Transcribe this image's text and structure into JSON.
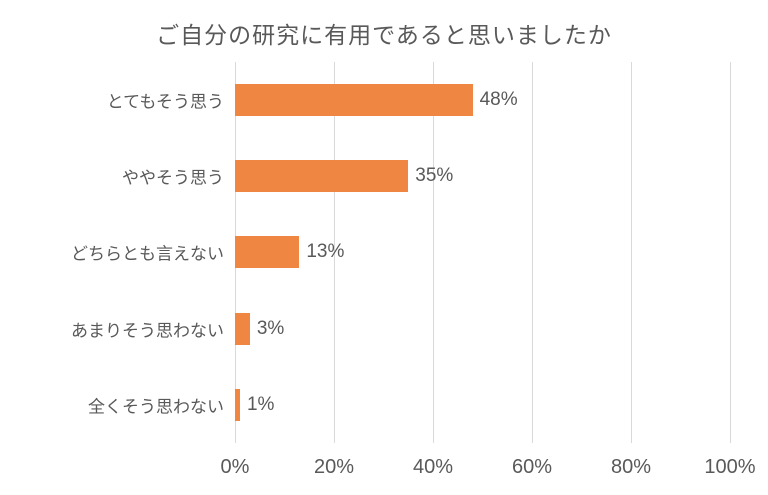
{
  "title": "ご自分の研究に有用であると思いましたか",
  "colors": {
    "bar": "#EF8743",
    "text": "#595959",
    "gridline": "#D9D9D9",
    "background": "#FFFFFF"
  },
  "chart_data": {
    "type": "bar",
    "orientation": "horizontal",
    "title": "ご自分の研究に有用であると思いましたか",
    "categories": [
      "とてもそう思う",
      "ややそう思う",
      "どちらとも言えない",
      "あまりそう思わない",
      "全くそう思わない"
    ],
    "values": [
      48,
      35,
      13,
      3,
      1
    ],
    "data_labels": [
      "48%",
      "35%",
      "13%",
      "3%",
      "1%"
    ],
    "xlabel": "",
    "ylabel": "",
    "xlim": [
      0,
      100
    ],
    "x_ticks": [
      "0%",
      "20%",
      "40%",
      "60%",
      "80%",
      "100%"
    ],
    "x_tick_values": [
      0,
      20,
      40,
      60,
      80,
      100
    ],
    "grid": "vertical",
    "legend": "none",
    "bar_color": "#EF8743"
  }
}
